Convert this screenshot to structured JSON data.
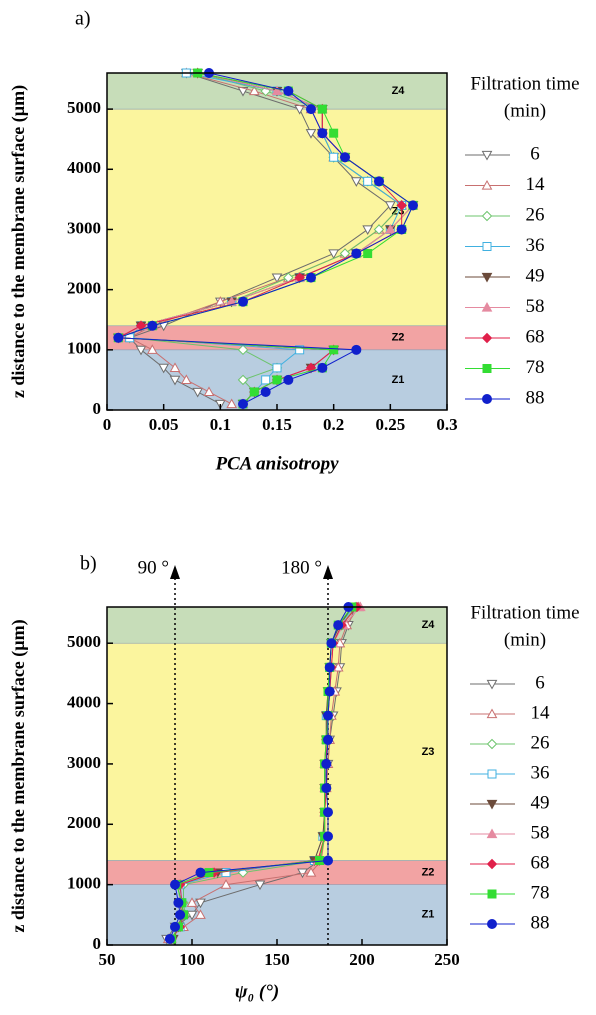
{
  "chart_data": [
    {
      "type": "line",
      "panel_label": "a)",
      "xlabel": "PCA anisotropy",
      "ylabel": "z distance to the membrane surface (µm)",
      "xlim": [
        0,
        0.3
      ],
      "ylim": [
        0,
        5600
      ],
      "xticks": [
        0,
        0.05,
        0.1,
        0.15,
        0.2,
        0.25,
        0.3
      ],
      "yticks": [
        0,
        1000,
        2000,
        3000,
        4000,
        5000
      ],
      "legend_title": [
        "Filtration time",
        "(min)"
      ],
      "zones": [
        {
          "label": "Z1",
          "from": 0,
          "to": 1000,
          "color": "#b8cde0"
        },
        {
          "label": "Z2",
          "from": 1000,
          "to": 1400,
          "color": "#f2a3a3"
        },
        {
          "label": "Z3",
          "from": 1400,
          "to": 5000,
          "color": "#fbf59e"
        },
        {
          "label": "Z4",
          "from": 5000,
          "to": 5600,
          "color": "#c7ddb9"
        }
      ],
      "y": [
        100,
        300,
        500,
        700,
        1000,
        1200,
        1400,
        1800,
        2200,
        2600,
        3000,
        3400,
        3800,
        4200,
        4600,
        5000,
        5300,
        5600
      ],
      "series": [
        {
          "name": "6",
          "color": "#6d6d6d",
          "marker": "tri-down-open",
          "values": [
            0.1,
            0.08,
            0.06,
            0.05,
            0.03,
            0.02,
            0.05,
            0.1,
            0.15,
            0.2,
            0.23,
            0.25,
            0.22,
            0.2,
            0.18,
            0.17,
            0.12,
            0.07
          ]
        },
        {
          "name": "14",
          "color": "#c87070",
          "marker": "tri-up-open",
          "values": [
            0.11,
            0.09,
            0.07,
            0.06,
            0.04,
            0.02,
            0.04,
            0.1,
            0.16,
            0.21,
            0.24,
            0.26,
            0.23,
            0.2,
            0.19,
            0.18,
            0.13,
            0.07
          ]
        },
        {
          "name": "26",
          "color": "#6cc46c",
          "marker": "diamond-open",
          "values": [
            0.12,
            0.13,
            0.12,
            0.15,
            0.12,
            0.02,
            0.03,
            0.11,
            0.16,
            0.21,
            0.24,
            0.26,
            0.23,
            0.2,
            0.19,
            0.19,
            0.14,
            0.08
          ]
        },
        {
          "name": "36",
          "color": "#40b0e0",
          "marker": "square-open",
          "values": [
            0.12,
            0.13,
            0.14,
            0.15,
            0.17,
            0.02,
            0.03,
            0.11,
            0.17,
            0.22,
            0.25,
            0.26,
            0.23,
            0.2,
            0.19,
            0.19,
            0.15,
            0.07
          ]
        },
        {
          "name": "49",
          "color": "#6b4a3a",
          "marker": "tri-down",
          "values": [
            0.12,
            0.13,
            0.15,
            0.18,
            0.2,
            0.01,
            0.03,
            0.11,
            0.17,
            0.22,
            0.25,
            0.27,
            0.24,
            0.21,
            0.19,
            0.19,
            0.15,
            0.08
          ]
        },
        {
          "name": "58",
          "color": "#e58aa0",
          "marker": "tri-up",
          "values": [
            0.12,
            0.13,
            0.15,
            0.18,
            0.2,
            0.01,
            0.03,
            0.11,
            0.17,
            0.22,
            0.25,
            0.27,
            0.24,
            0.21,
            0.19,
            0.19,
            0.15,
            0.08
          ]
        },
        {
          "name": "68",
          "color": "#e0204a",
          "marker": "diamond",
          "values": [
            0.12,
            0.13,
            0.15,
            0.18,
            0.2,
            0.01,
            0.03,
            0.12,
            0.17,
            0.22,
            0.26,
            0.26,
            0.24,
            0.21,
            0.19,
            0.19,
            0.16,
            0.08
          ]
        },
        {
          "name": "78",
          "color": "#33dd33",
          "marker": "square",
          "values": [
            0.12,
            0.13,
            0.15,
            0.19,
            0.2,
            0.01,
            0.04,
            0.12,
            0.18,
            0.23,
            0.26,
            0.27,
            0.24,
            0.21,
            0.2,
            0.19,
            0.16,
            0.08
          ]
        },
        {
          "name": "88",
          "color": "#1020cc",
          "marker": "circle",
          "values": [
            0.12,
            0.14,
            0.16,
            0.19,
            0.22,
            0.01,
            0.04,
            0.12,
            0.18,
            0.22,
            0.26,
            0.27,
            0.24,
            0.21,
            0.19,
            0.18,
            0.16,
            0.09
          ]
        }
      ]
    },
    {
      "type": "line",
      "panel_label": "b)",
      "xlabel": "ψ₀ (°)",
      "ylabel": "z distance to the membrane surface (µm)",
      "xlim": [
        50,
        250
      ],
      "ylim": [
        0,
        5600
      ],
      "xticks": [
        50,
        100,
        150,
        200,
        250
      ],
      "yticks": [
        0,
        1000,
        2000,
        3000,
        4000,
        5000
      ],
      "legend_title": [
        "Filtration time",
        "(min)"
      ],
      "reference_lines": [
        {
          "value": 90,
          "label": "90 °"
        },
        {
          "value": 180,
          "label": "180 °"
        }
      ],
      "zones": [
        {
          "label": "Z1",
          "from": 0,
          "to": 1000,
          "color": "#b8cde0"
        },
        {
          "label": "Z2",
          "from": 1000,
          "to": 1400,
          "color": "#f2a3a3"
        },
        {
          "label": "Z3",
          "from": 1400,
          "to": 5000,
          "color": "#fbf59e"
        },
        {
          "label": "Z4",
          "from": 5000,
          "to": 5600,
          "color": "#c7ddb9"
        }
      ],
      "y": [
        100,
        300,
        500,
        700,
        1000,
        1200,
        1400,
        1800,
        2200,
        2600,
        3000,
        3400,
        3800,
        4200,
        4600,
        5000,
        5300,
        5600
      ],
      "series": [
        {
          "name": "6",
          "color": "#6d6d6d",
          "marker": "tri-down-open",
          "values": [
            85,
            90,
            100,
            105,
            140,
            165,
            175,
            178,
            178,
            179,
            180,
            181,
            183,
            185,
            187,
            188,
            192,
            196
          ]
        },
        {
          "name": "14",
          "color": "#c87070",
          "marker": "tri-up-open",
          "values": [
            86,
            95,
            105,
            100,
            120,
            170,
            176,
            178,
            178,
            179,
            180,
            181,
            182,
            184,
            186,
            187,
            191,
            198
          ]
        },
        {
          "name": "26",
          "color": "#6cc46c",
          "marker": "diamond-open",
          "values": [
            88,
            92,
            96,
            95,
            95,
            130,
            175,
            178,
            178,
            178,
            179,
            180,
            180,
            181,
            182,
            183,
            188,
            196
          ]
        },
        {
          "name": "36",
          "color": "#40b0e0",
          "marker": "square-open",
          "values": [
            88,
            93,
            95,
            94,
            93,
            120,
            172,
            177,
            178,
            178,
            178,
            179,
            179,
            180,
            181,
            182,
            187,
            195
          ]
        },
        {
          "name": "49",
          "color": "#6b4a3a",
          "marker": "tri-down",
          "values": [
            89,
            92,
            94,
            93,
            92,
            115,
            172,
            177,
            178,
            178,
            178,
            179,
            179,
            180,
            181,
            182,
            187,
            194
          ]
        },
        {
          "name": "58",
          "color": "#e58aa0",
          "marker": "tri-up",
          "values": [
            88,
            92,
            95,
            93,
            92,
            112,
            174,
            178,
            178,
            178,
            178,
            179,
            180,
            181,
            182,
            183,
            189,
            199
          ]
        },
        {
          "name": "68",
          "color": "#e0204a",
          "marker": "diamond",
          "values": [
            88,
            93,
            95,
            94,
            93,
            113,
            174,
            178,
            178,
            179,
            179,
            179,
            180,
            181,
            182,
            183,
            188,
            197
          ]
        },
        {
          "name": "78",
          "color": "#33dd33",
          "marker": "square",
          "values": [
            88,
            92,
            95,
            94,
            91,
            110,
            175,
            178,
            178,
            178,
            178,
            179,
            180,
            180,
            181,
            182,
            186,
            194
          ]
        },
        {
          "name": "88",
          "color": "#1020cc",
          "marker": "circle",
          "values": [
            87,
            90,
            93,
            92,
            90,
            105,
            180,
            180,
            180,
            179,
            179,
            180,
            180,
            181,
            181,
            182,
            186,
            192
          ]
        }
      ]
    }
  ]
}
